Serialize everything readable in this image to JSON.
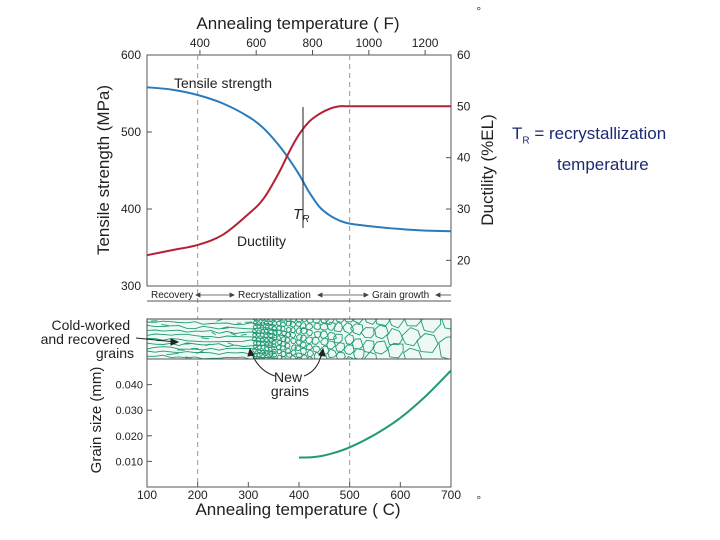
{
  "chart_data": {
    "type": "line",
    "top_axis_title": "Annealing temperature ( F)",
    "top_axis_ticks": [
      400,
      600,
      800,
      1000,
      1200
    ],
    "bottom_axis_title": "Annealing temperature ( C)",
    "bottom_axis_ticks": [
      100,
      200,
      300,
      400,
      500,
      600,
      700
    ],
    "xlim": [
      100,
      700
    ],
    "left_ylabel": "Tensile strength (MPa)",
    "left_yticks": [
      300,
      400,
      500,
      600
    ],
    "left_ylim": [
      300,
      600
    ],
    "right_ylabel": "Ductility (%EL)",
    "right_yticks": [
      20,
      30,
      40,
      50,
      60
    ],
    "right_ylim": [
      15,
      60
    ],
    "grain_ylabel": "Grain size (mm)",
    "grain_yticks": [
      "0.010",
      "0.020",
      "0.030",
      "0.040"
    ],
    "grain_ylim": [
      0,
      0.05
    ],
    "dashed_lines_x": [
      200,
      500
    ],
    "series": [
      {
        "name": "Tensile strength",
        "axis": "left",
        "color": "#2a7bbd",
        "x": [
          100,
          150,
          200,
          250,
          300,
          330,
          360,
          380,
          400,
          420,
          440,
          460,
          480,
          500,
          550,
          600,
          650,
          700
        ],
        "y": [
          558,
          555,
          548,
          537,
          520,
          505,
          483,
          465,
          445,
          422,
          403,
          392,
          385,
          381,
          377,
          374,
          372,
          371
        ]
      },
      {
        "name": "Ductility",
        "axis": "right",
        "color": "#b22233",
        "x": [
          100,
          150,
          200,
          250,
          300,
          330,
          360,
          380,
          400,
          420,
          440,
          460,
          480,
          500,
          540,
          600,
          650,
          700
        ],
        "y": [
          21,
          22,
          23,
          25,
          29,
          32,
          37,
          41,
          44.5,
          47,
          48.5,
          49.5,
          50,
          50,
          50,
          50,
          50,
          50
        ]
      },
      {
        "name": "Grain size",
        "axis": "grain",
        "color": "#1f9a73",
        "x": [
          400,
          430,
          460,
          500,
          550,
          600,
          650,
          700
        ],
        "y": [
          0.0115,
          0.0117,
          0.0128,
          0.0155,
          0.0205,
          0.027,
          0.0355,
          0.0455
        ]
      }
    ],
    "regions": [
      "Recovery",
      "Recrystallization",
      "Grain growth"
    ],
    "annotations": {
      "tr_label": "T",
      "tr_sub": "R",
      "cold_worked": [
        "Cold-worked",
        "and recovered",
        "grains"
      ],
      "new_grains": [
        "New",
        "grains"
      ]
    }
  },
  "side_note": {
    "line1_t": "T",
    "line1_sub": "R",
    "line1_rest": " = recrystallization",
    "line2": "temperature"
  },
  "degree_symbol": "°"
}
